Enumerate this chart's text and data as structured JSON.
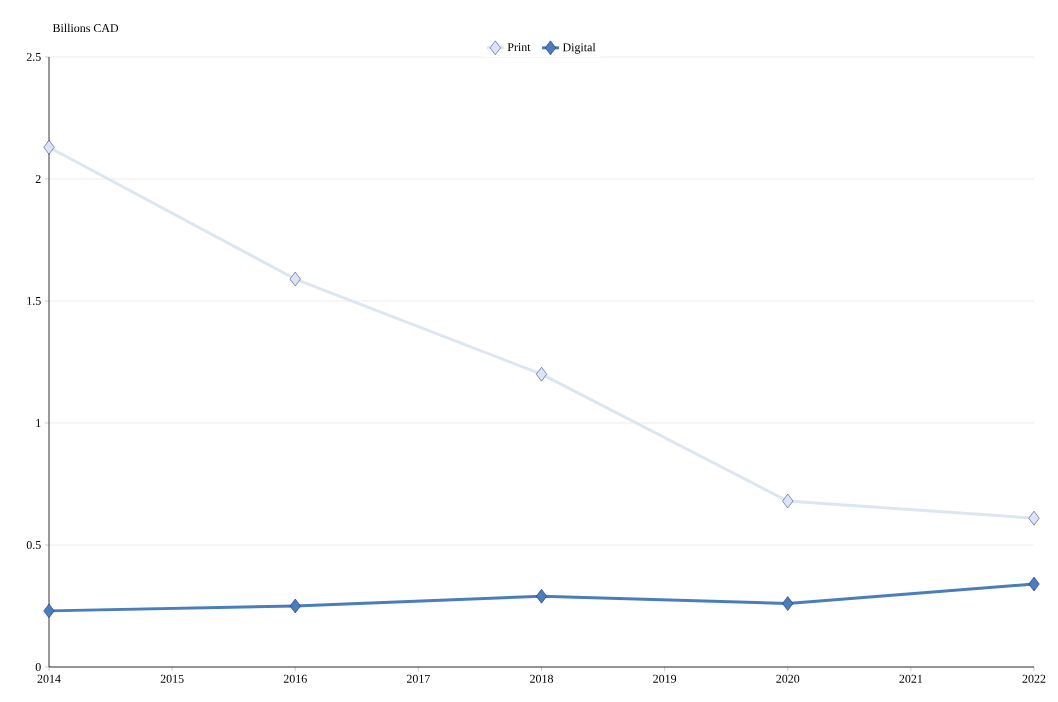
{
  "chart_data": {
    "type": "line",
    "ylabel": "Billions CAD",
    "x": [
      2014,
      2016,
      2018,
      2020,
      2022
    ],
    "series": [
      {
        "name": "Print",
        "color": "#dce6f2",
        "values": [
          2.13,
          1.59,
          1.2,
          0.68,
          0.61
        ]
      },
      {
        "name": "Digital",
        "color": "#4a7ebb",
        "values": [
          0.23,
          0.25,
          0.29,
          0.26,
          0.34
        ]
      }
    ],
    "xlim": [
      2014,
      2022
    ],
    "xticks": [
      2014,
      2015,
      2016,
      2017,
      2018,
      2019,
      2020,
      2021,
      2022
    ],
    "ylim": [
      0,
      2.5
    ],
    "yticks": [
      0,
      0.5,
      1,
      1.5,
      2,
      2.5
    ],
    "grid": "y",
    "legend": "top",
    "marker": "diamond",
    "line_style": "solid"
  }
}
